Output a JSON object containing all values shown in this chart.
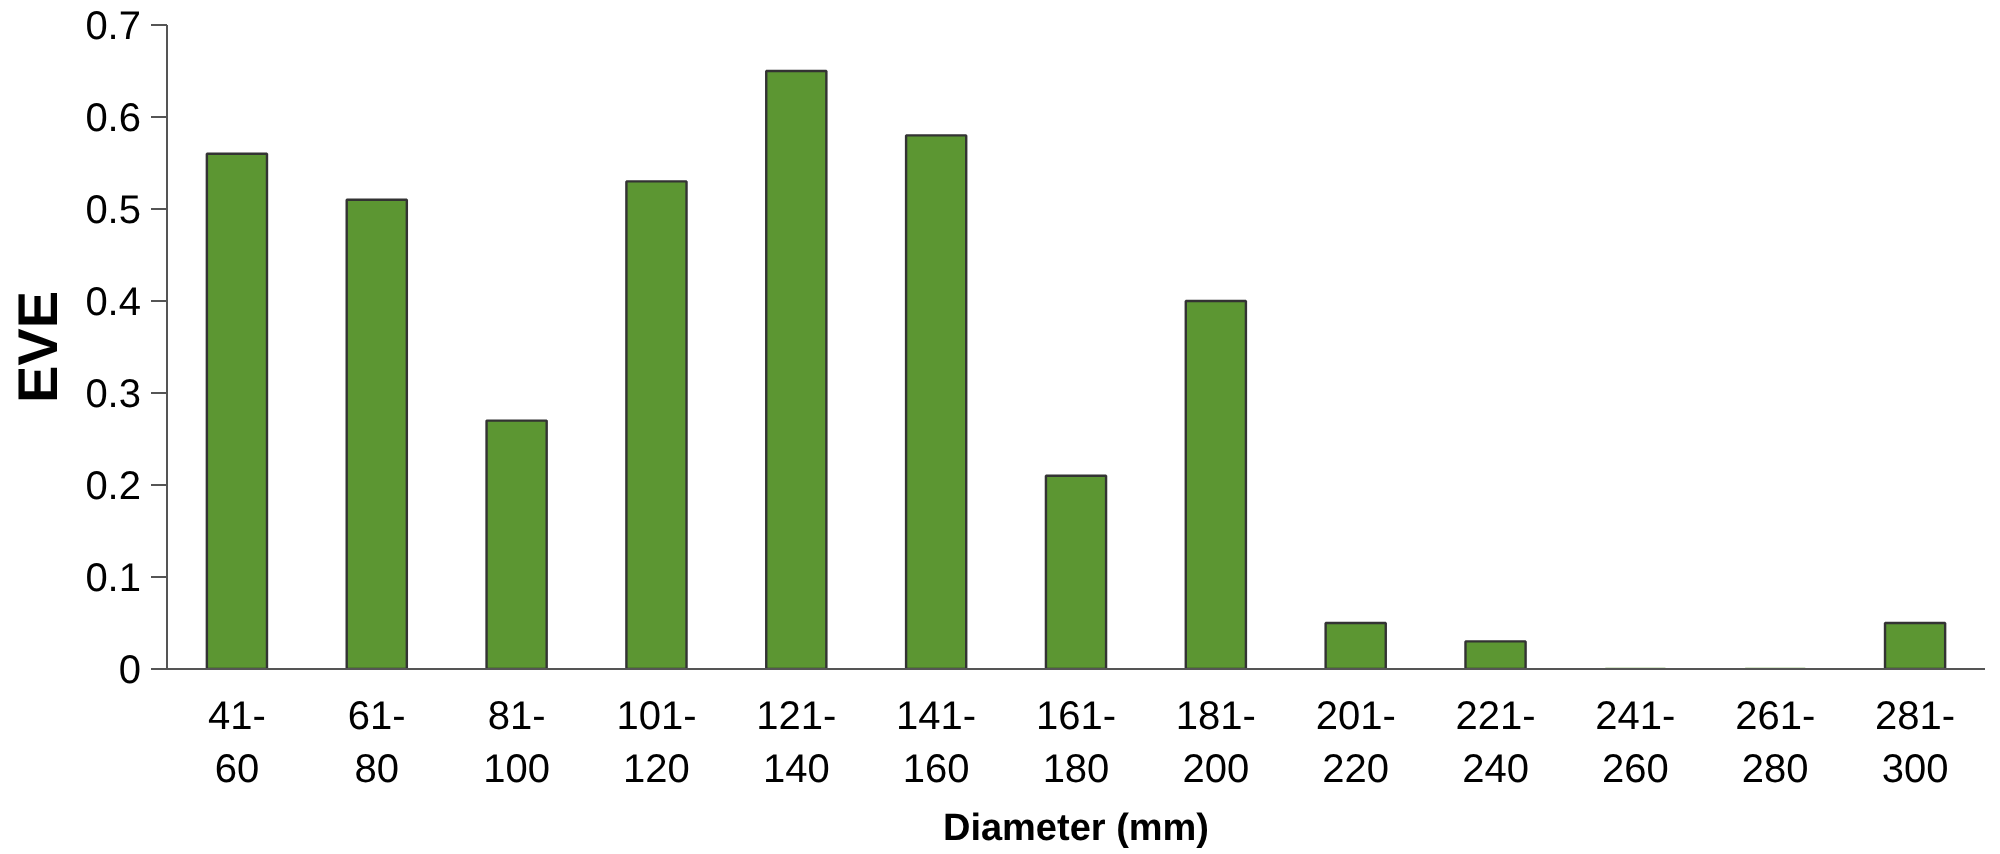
{
  "chart_data": {
    "type": "bar",
    "xlabel": "Diameter (mm)",
    "ylabel": "EVE",
    "categories": [
      "41-\n60",
      "61-\n80",
      "81-\n100",
      "101-\n120",
      "121-\n140",
      "141-\n160",
      "161-\n180",
      "181-\n200",
      "201-\n220",
      "221-\n240",
      "241-\n260",
      "261-\n280",
      "281-\n300"
    ],
    "values": [
      0.56,
      0.51,
      0.27,
      0.53,
      0.65,
      0.58,
      0.21,
      0.4,
      0.05,
      0.03,
      0,
      0,
      0.05
    ],
    "color": "#5c9632",
    "ylim": [
      0,
      0.7
    ],
    "yticks": [
      0,
      0.1,
      0.2,
      0.3,
      0.4,
      0.5,
      0.6,
      0.7
    ],
    "grid": false
  }
}
